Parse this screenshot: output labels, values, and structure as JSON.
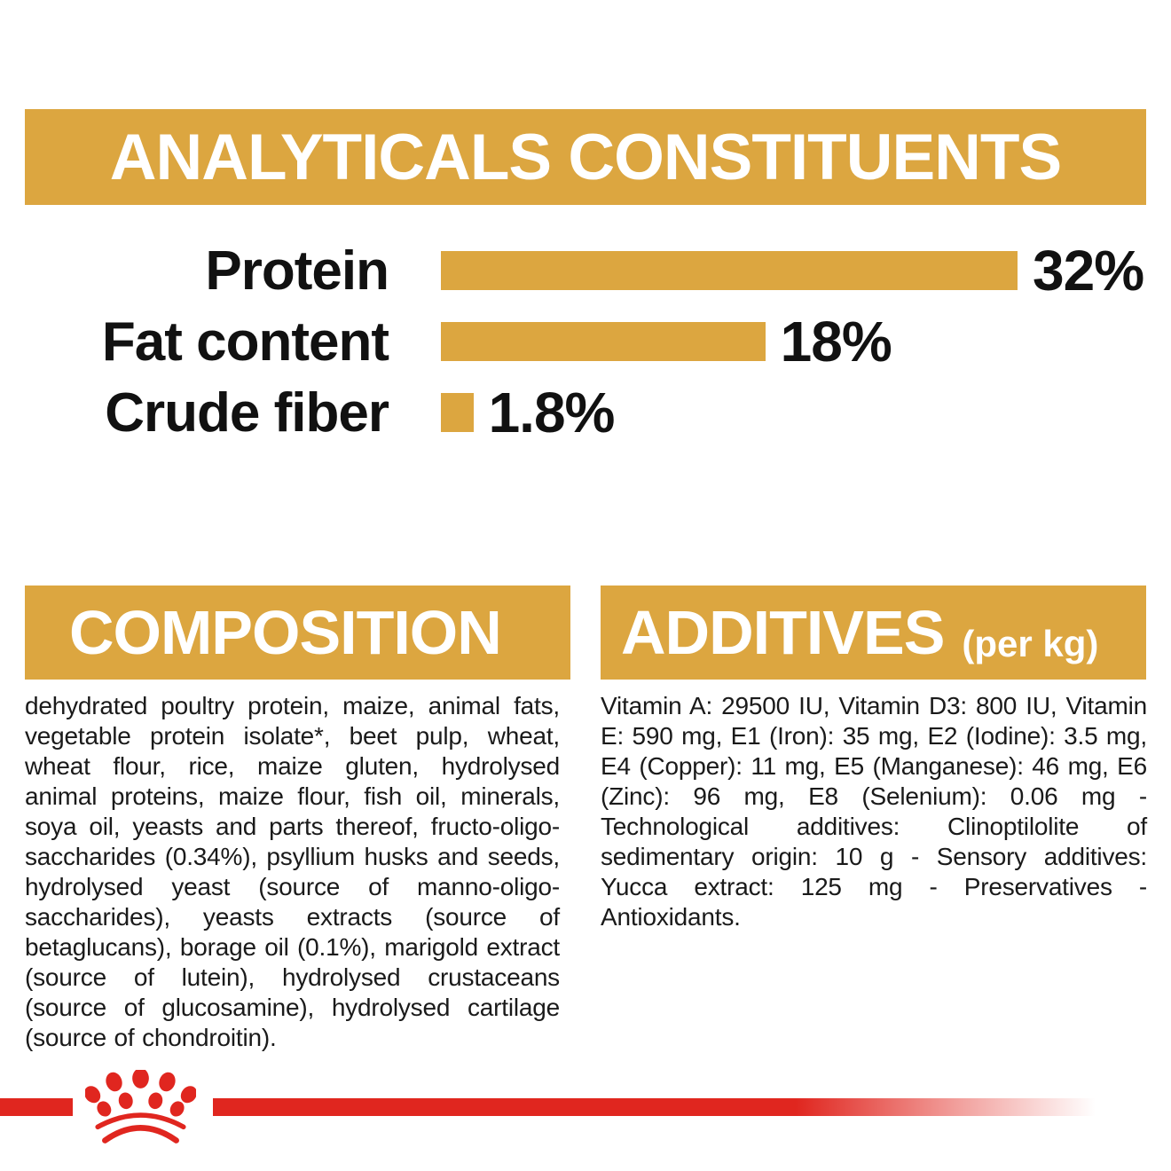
{
  "colors": {
    "gold": "#DCA640",
    "red": "#E0261F",
    "ink": "#111111",
    "body_text": "#1A1A1A",
    "band_text": "#FFFFFF",
    "background": "#FFFFFF"
  },
  "header": {
    "title": "ANALYTICALS CONSTITUENTS"
  },
  "chart_data": {
    "type": "bar",
    "orientation": "horizontal",
    "title": "ANALYTICALS CONSTITUENTS",
    "categories": [
      "Protein",
      "Fat content",
      "Crude fiber"
    ],
    "values": [
      32,
      18,
      1.8
    ],
    "value_labels": [
      "32%",
      "18%",
      "1.8%"
    ],
    "unit": "percent",
    "xlim": [
      0,
      32
    ],
    "bar_color": "#DCA640",
    "grid": false,
    "legend": false
  },
  "composition": {
    "title": "COMPOSITION",
    "body": "dehydrated poultry protein, maize, animal fats, vegetable protein isolate*, beet pulp, wheat, wheat flour, rice, maize gluten, hydrolysed animal proteins, maize flour, fish oil, minerals, soya oil, yeasts and parts thereof, fructo-oligo-saccharides (0.34%), psyllium husks and seeds, hydrolysed yeast (source of manno-oligo-saccharides), yeasts extracts (source of betaglucans), borage oil (0.1%), marigold extract (source of lutein), hydrolysed crustaceans (source of glucosamine), hydrolysed cartilage (source of chondroitin)."
  },
  "additives": {
    "title": "ADDITIVES",
    "title_suffix": "(per kg)",
    "body": "Vitamin A: 29500 IU, Vitamin D3: 800 IU, Vitamin E: 590 mg, E1 (Iron): 35 mg, E2 (Iodine): 3.5 mg, E4 (Copper): 11 mg, E5 (Manganese): 46 mg, E6 (Zinc): 96 mg, E8 (Selenium): 0.06 mg - Technological additives: Clinoptilolite of sedimentary origin: 10 g - Sensory additives: Yucca extract: 125 mg - Preservatives - Antioxidants."
  },
  "footer": {
    "logo": "royal-canin-crown"
  }
}
